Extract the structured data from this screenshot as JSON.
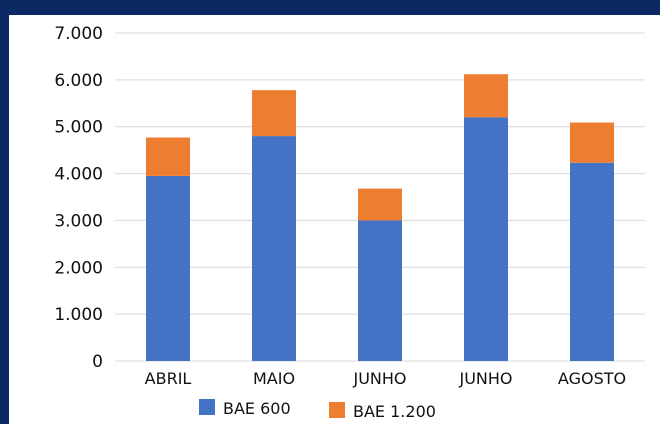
{
  "chart_data": {
    "type": "bar",
    "stacked": true,
    "categories": [
      "ABRIL",
      "MAIO",
      "JUNHO",
      "JUNHO",
      "AGOSTO"
    ],
    "series": [
      {
        "name": "BAE 600",
        "color": "#4472c4",
        "values": [
          3950,
          4800,
          3000,
          5200,
          4230
        ]
      },
      {
        "name": "BAE 1.200",
        "color": "#ed7d31",
        "values": [
          820,
          980,
          680,
          920,
          860
        ]
      }
    ],
    "ylim": [
      0,
      7000
    ],
    "y_ticks": [
      "0",
      "1.000",
      "2.000",
      "3.000",
      "4.000",
      "5.000",
      "6.000",
      "7.000"
    ],
    "grid": true,
    "legend_position": "bottom"
  }
}
